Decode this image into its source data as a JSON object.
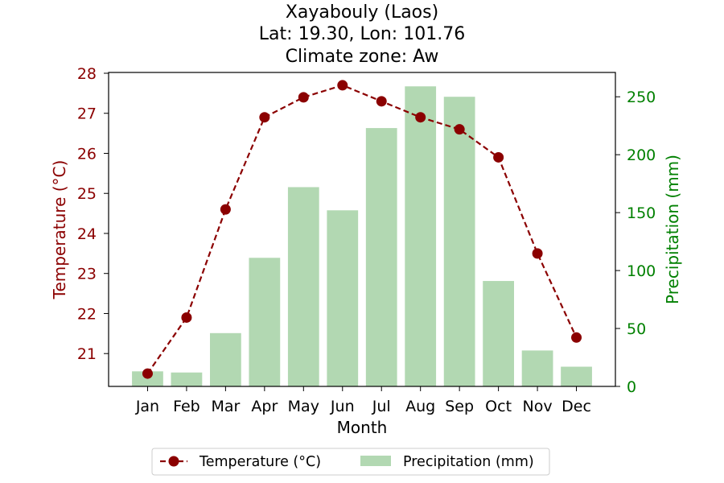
{
  "chart_data": {
    "type": "bar+line",
    "title_lines": [
      "Xayabouly (Laos)",
      "Lat: 19.30, Lon: 101.76",
      "Climate zone: Aw"
    ],
    "xlabel": "Month",
    "categories": [
      "Jan",
      "Feb",
      "Mar",
      "Apr",
      "May",
      "Jun",
      "Jul",
      "Aug",
      "Sep",
      "Oct",
      "Nov",
      "Dec"
    ],
    "series": [
      {
        "name": "Temperature (°C)",
        "kind": "line",
        "axis": "left",
        "color": "#8b0000",
        "values": [
          20.5,
          21.9,
          24.6,
          26.9,
          27.4,
          27.7,
          27.3,
          26.9,
          26.6,
          25.9,
          23.5,
          21.4
        ]
      },
      {
        "name": "Precipitation (mm)",
        "kind": "bar",
        "axis": "right",
        "color": "#b2d8b2",
        "values": [
          13,
          12,
          46,
          111,
          172,
          152,
          223,
          259,
          250,
          91,
          31,
          17
        ]
      }
    ],
    "y_left": {
      "label": "Temperature (°C)",
      "color": "#8b0000",
      "min": 20.18,
      "max": 28.02,
      "ticks": [
        21,
        22,
        23,
        24,
        25,
        26,
        27,
        28
      ]
    },
    "y_right": {
      "label": "Precipitation (mm)",
      "color": "#008000",
      "min": 0,
      "max": 271,
      "ticks": [
        0,
        50,
        100,
        150,
        200,
        250
      ]
    },
    "legend": {
      "position": "bottom-center",
      "items": [
        "Temperature (°C)",
        "Precipitation (mm)"
      ]
    },
    "grid": false
  }
}
